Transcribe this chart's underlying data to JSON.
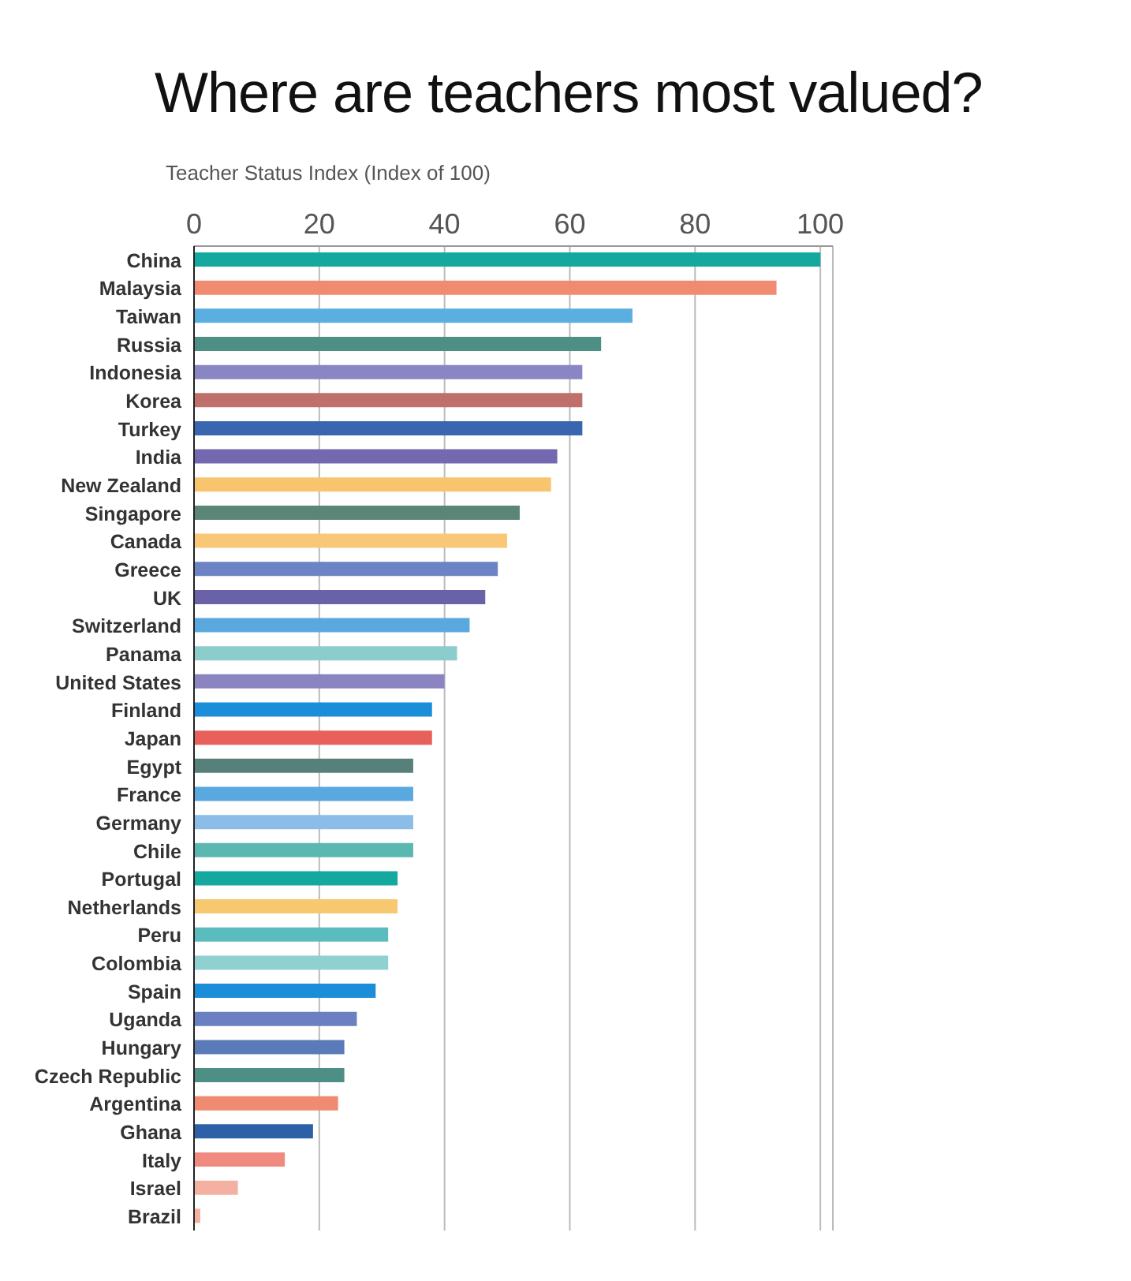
{
  "chart_data": {
    "type": "bar",
    "orientation": "horizontal",
    "title": "Where are teachers most valued?",
    "xlabel": "Teacher Status Index (Index of 100)",
    "categories": [
      "China",
      "Malaysia",
      "Taiwan",
      "Russia",
      "Indonesia",
      "Korea",
      "Turkey",
      "India",
      "New Zealand",
      "Singapore",
      "Canada",
      "Greece",
      "UK",
      "Switzerland",
      "Panama",
      "United States",
      "Finland",
      "Japan",
      "Egypt",
      "France",
      "Germany",
      "Chile",
      "Portugal",
      "Netherlands",
      "Peru",
      "Colombia",
      "Spain",
      "Uganda",
      "Hungary",
      "Czech Republic",
      "Argentina",
      "Ghana",
      "Italy",
      "Israel",
      "Brazil"
    ],
    "values": [
      100,
      93,
      70,
      65,
      62,
      62,
      62,
      58,
      57,
      52,
      50,
      48.5,
      46.5,
      44,
      42,
      40,
      38,
      38,
      35,
      35,
      35,
      35,
      32.5,
      32.5,
      31,
      31,
      29,
      26,
      24,
      24,
      23,
      19,
      14.5,
      7,
      1
    ],
    "colors": [
      "#14a89e",
      "#f08a70",
      "#5aaee0",
      "#4e8f85",
      "#8a86c4",
      "#c0706a",
      "#3a66b0",
      "#7468b0",
      "#f8c46e",
      "#5a8577",
      "#f8c878",
      "#6c84c4",
      "#6a62a8",
      "#5aa8e0",
      "#8ccccc",
      "#8a84c0",
      "#1a8ed8",
      "#e8605a",
      "#58807a",
      "#5aa8e0",
      "#8cbce8",
      "#5ab8b0",
      "#14a89e",
      "#f8c870",
      "#5abcbc",
      "#90d0d0",
      "#1a8ed8",
      "#6a80c0",
      "#5a7ab8",
      "#4e8f85",
      "#f08a70",
      "#2e60a8",
      "#f08a80",
      "#f4b0a0",
      "#f4b0a0"
    ],
    "xlim": [
      0,
      102
    ],
    "xticks": [
      0,
      20,
      40,
      60,
      80,
      100
    ],
    "grid": "x"
  }
}
